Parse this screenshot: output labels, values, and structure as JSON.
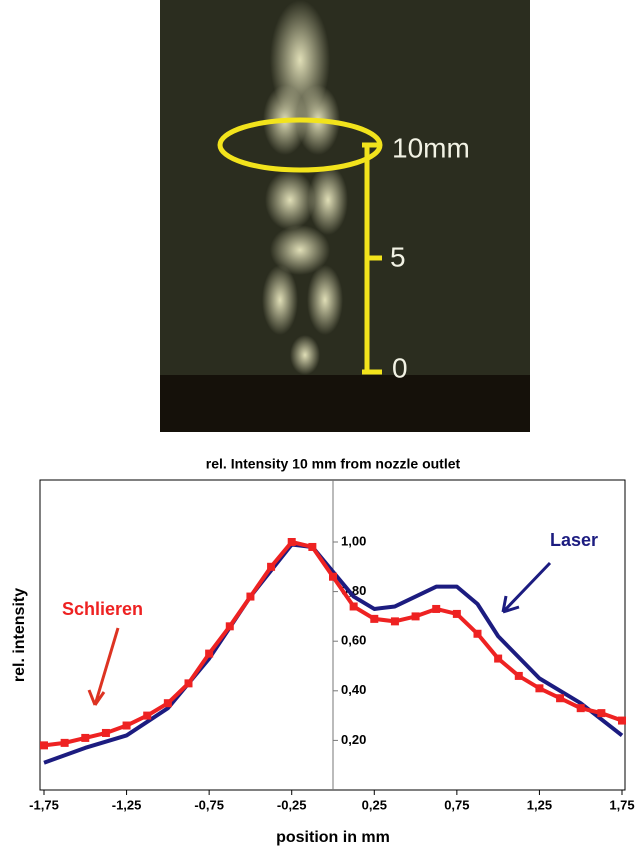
{
  "photo": {
    "labels": [
      "10mm",
      "5",
      "0"
    ]
  },
  "chart_data": {
    "type": "line",
    "title": "rel. Intensity 10 mm from nozzle outlet",
    "x_label": "position in mm",
    "y_label": "rel. intensity",
    "xlim": [
      -1.75,
      1.75
    ],
    "ylim": [
      0,
      1.25
    ],
    "xticks": [
      {
        "value": -1.75,
        "label": "-1,75"
      },
      {
        "value": -1.25,
        "label": "-1,25"
      },
      {
        "value": -0.75,
        "label": "-0,75"
      },
      {
        "value": -0.25,
        "label": "-0,25"
      },
      {
        "value": 0.25,
        "label": "0,25"
      },
      {
        "value": 0.75,
        "label": "0,75"
      },
      {
        "value": 1.25,
        "label": "1,25"
      },
      {
        "value": 1.75,
        "label": "1,75"
      }
    ],
    "yticks": [
      {
        "value": 0.2,
        "label": "0,20"
      },
      {
        "value": 0.4,
        "label": "0,40"
      },
      {
        "value": 0.6,
        "label": "0,60"
      },
      {
        "value": 0.8,
        "label": "0,80"
      },
      {
        "value": 1.0,
        "label": "1,00"
      }
    ],
    "series": [
      {
        "name": "Laser",
        "color": "#1c1c80",
        "x": [
          -1.75,
          -1.5,
          -1.25,
          -1.0,
          -0.75,
          -0.5,
          -0.25,
          -0.125,
          0,
          0.125,
          0.25,
          0.375,
          0.5,
          0.625,
          0.75,
          0.875,
          1.0,
          1.25,
          1.5,
          1.75
        ],
        "values": [
          0.11,
          0.17,
          0.22,
          0.33,
          0.53,
          0.78,
          0.99,
          0.98,
          0.88,
          0.78,
          0.73,
          0.74,
          0.78,
          0.82,
          0.82,
          0.75,
          0.62,
          0.45,
          0.35,
          0.22
        ]
      },
      {
        "name": "Schlieren",
        "color": "#ee2222",
        "markers": true,
        "x": [
          -1.75,
          -1.625,
          -1.5,
          -1.375,
          -1.25,
          -1.125,
          -1.0,
          -0.875,
          -0.75,
          -0.625,
          -0.5,
          -0.375,
          -0.25,
          -0.125,
          0,
          0.125,
          0.25,
          0.375,
          0.5,
          0.625,
          0.75,
          0.875,
          1.0,
          1.125,
          1.25,
          1.375,
          1.5,
          1.625,
          1.75
        ],
        "values": [
          0.18,
          0.19,
          0.21,
          0.23,
          0.26,
          0.3,
          0.35,
          0.43,
          0.55,
          0.66,
          0.78,
          0.9,
          1.0,
          0.98,
          0.86,
          0.74,
          0.69,
          0.68,
          0.7,
          0.73,
          0.71,
          0.63,
          0.53,
          0.46,
          0.41,
          0.37,
          0.33,
          0.31,
          0.28
        ]
      }
    ]
  }
}
